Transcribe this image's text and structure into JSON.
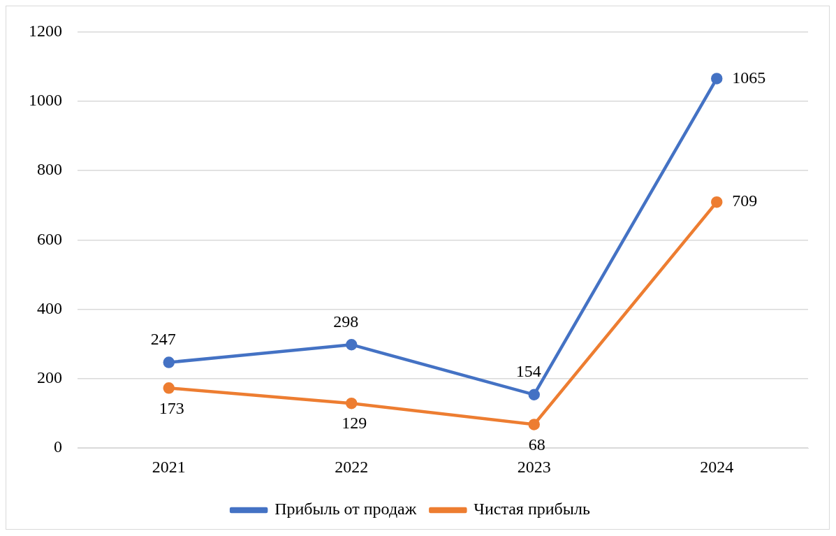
{
  "chart_data": {
    "type": "line",
    "categories": [
      "2021",
      "2022",
      "2023",
      "2024"
    ],
    "series": [
      {
        "name": "Прибыль от продаж",
        "color": "#4472c4",
        "values": [
          247,
          298,
          154,
          1065
        ]
      },
      {
        "name": "Чистая прибыль",
        "color": "#ed7d31",
        "values": [
          173,
          129,
          68,
          709
        ]
      }
    ],
    "ylim": [
      0,
      1200
    ],
    "yticks": [
      0,
      200,
      400,
      600,
      800,
      1000,
      1200
    ],
    "grid": "y",
    "legend": "bottom",
    "marker": "circle",
    "line_style": "solid",
    "data_labels": true
  }
}
